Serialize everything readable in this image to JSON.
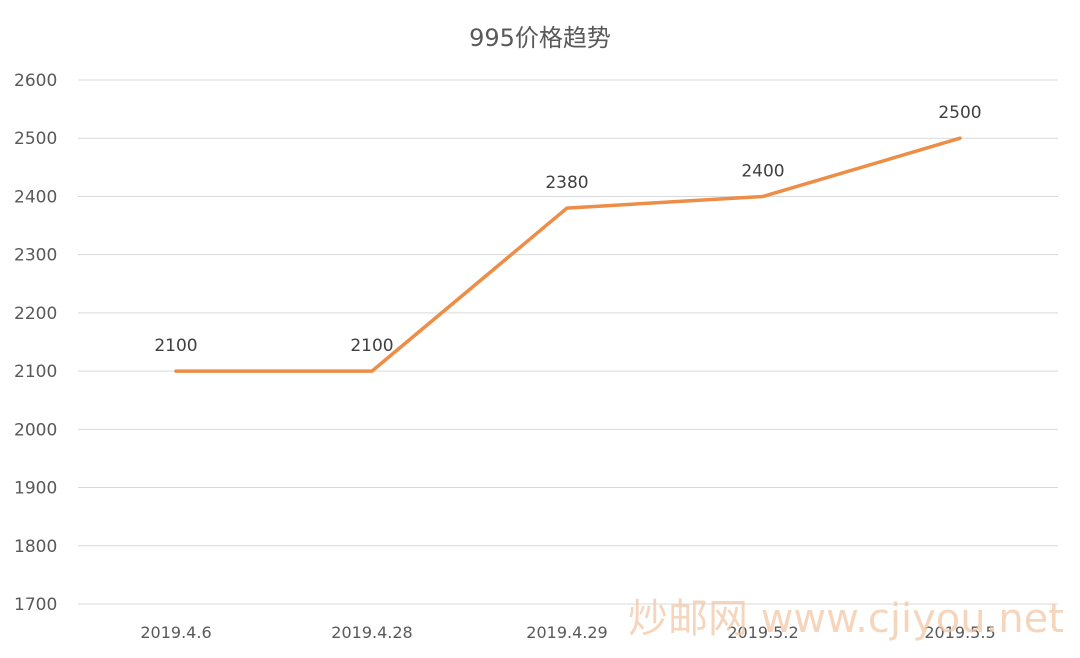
{
  "chart_data": {
    "type": "line",
    "title": "995价格趋势",
    "categories": [
      "2019.4.6",
      "2019.4.28",
      "2019.4.29",
      "2019.5.2",
      "2019.5.5"
    ],
    "series": [
      {
        "values": [
          2100,
          2100,
          2380,
          2400,
          2500
        ],
        "color": "#ed8d46"
      }
    ],
    "data_labels": [
      "2100",
      "2100",
      "2380",
      "2400",
      "2500"
    ],
    "ylim": [
      1700,
      2600
    ],
    "y_ticks": [
      1700,
      1800,
      1900,
      2000,
      2100,
      2200,
      2300,
      2400,
      2500,
      2600
    ],
    "grid": true,
    "legend": "none"
  },
  "watermark": "炒邮网 www.cjiyou.net"
}
